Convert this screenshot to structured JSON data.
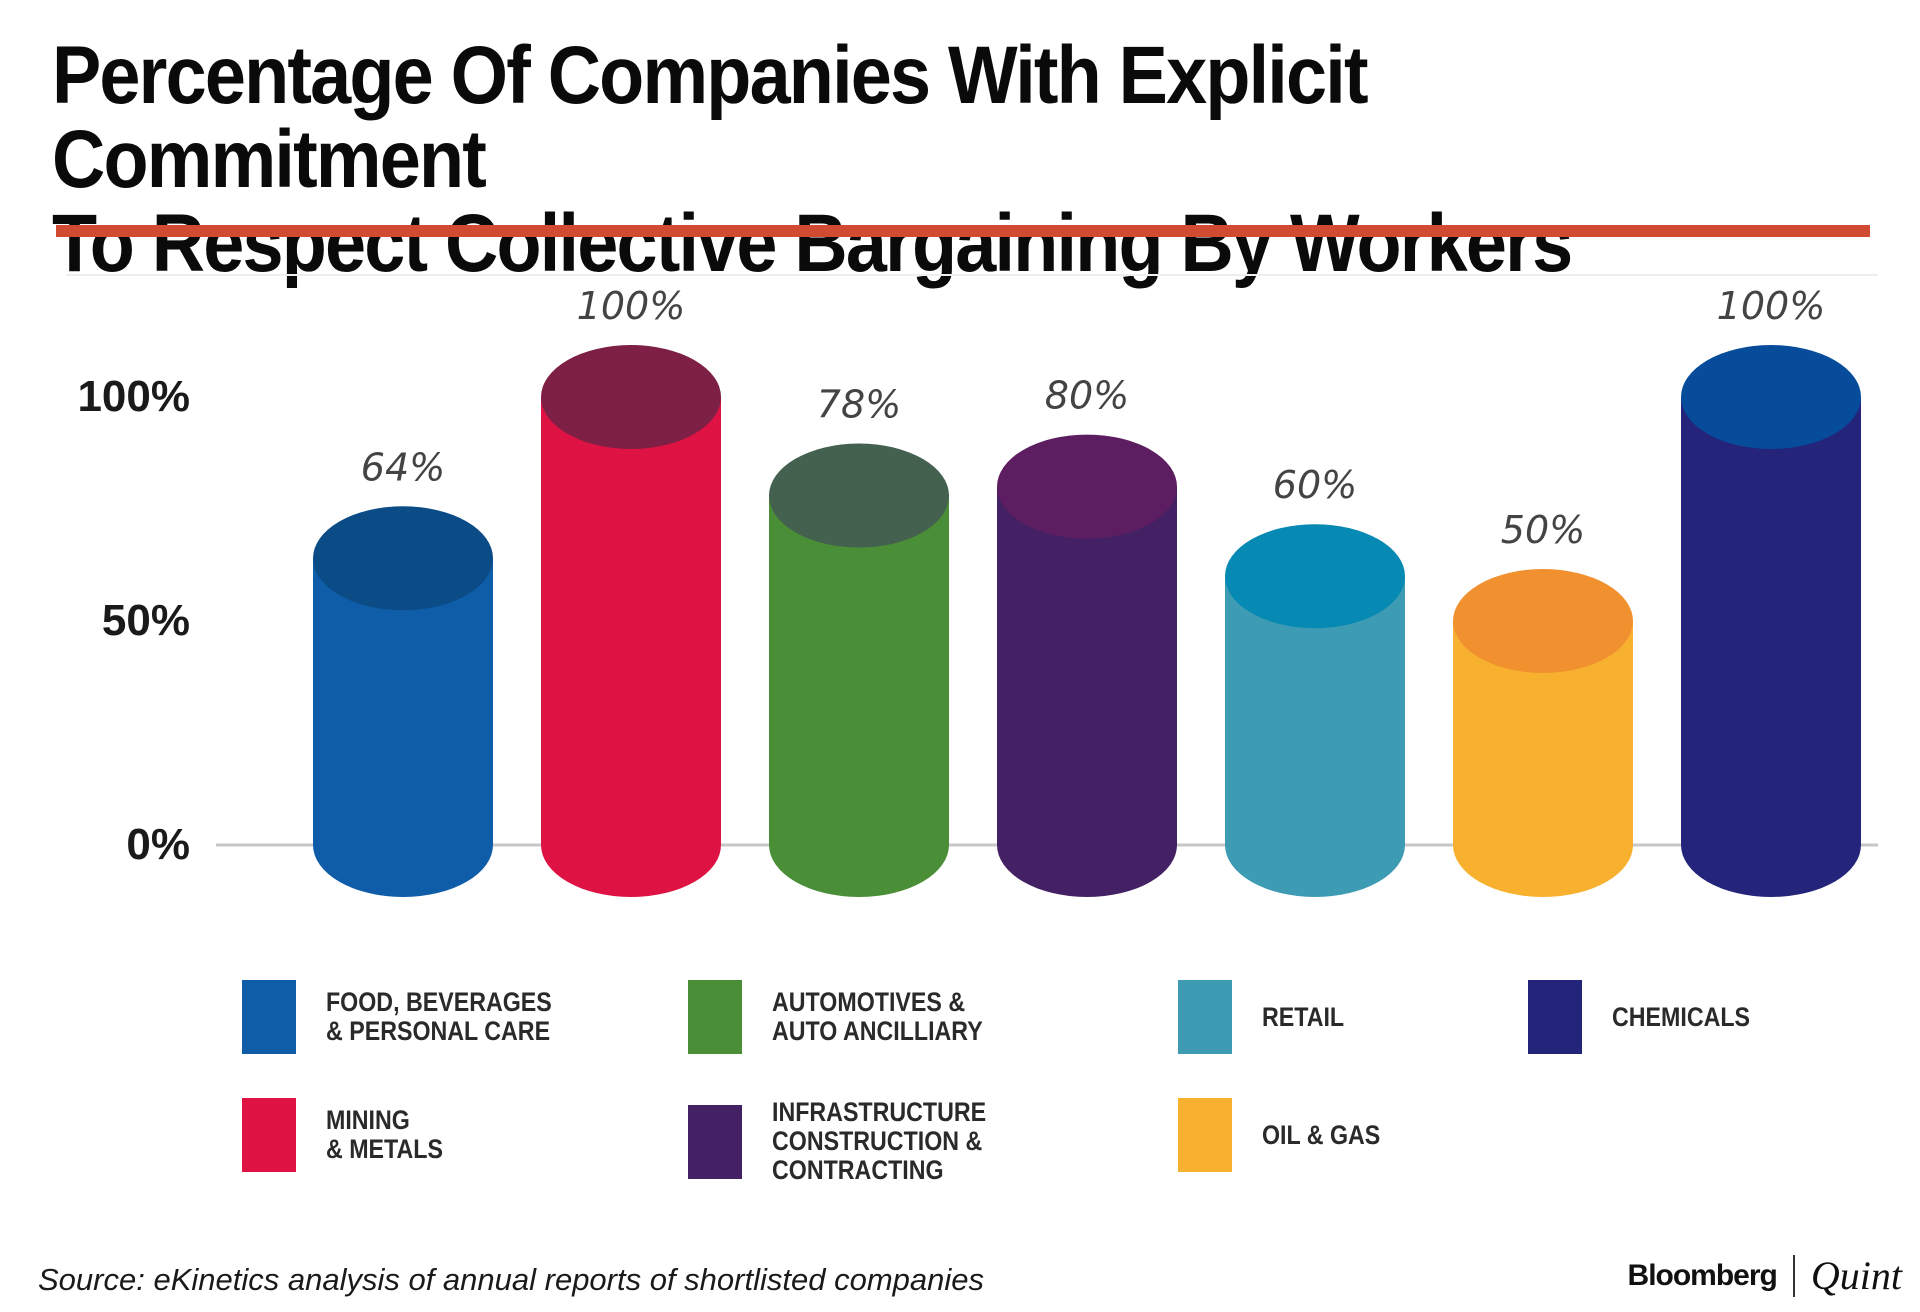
{
  "title_lines": [
    "Percentage Of Companies With Explicit Commitment",
    "To Respect Collective Bargaining By Workers"
  ],
  "chart_data": {
    "type": "bar",
    "style": "3d-cylinder",
    "title": "Percentage Of Companies With Explicit Commitment To Respect Collective Bargaining By Workers",
    "ylim": [
      0,
      100
    ],
    "yticks": [
      "0%",
      "50%",
      "100%"
    ],
    "ytick_values": [
      0,
      50,
      100
    ],
    "categories": [
      "FOOD, BEVERAGES & PERSONAL CARE",
      "MINING & METALS",
      "AUTOMOTIVES & AUTO ANCILLIARY",
      "INFRASTRUCTURE CONSTRUCTION & CONTRACTING",
      "RETAIL",
      "OIL & GAS",
      "CHEMICALS"
    ],
    "values": [
      64,
      100,
      78,
      80,
      60,
      50,
      100
    ],
    "value_labels": [
      "64%",
      "100%",
      "78%",
      "80%",
      "60%",
      "50%",
      "100%"
    ],
    "body_colors": [
      "#0f5ca8",
      "#de1343",
      "#4a8f37",
      "#442064",
      "#3e9bb4",
      "#f8b12f",
      "#23247a"
    ],
    "top_colors": [
      "#0b4b86",
      "#7e1f45",
      "#44604f",
      "#5d1d61",
      "#0689b2",
      "#f1902f",
      "#064c9b"
    ],
    "legend_position": "bottom"
  },
  "legend": {
    "items": [
      {
        "label": "FOOD, BEVERAGES\n& PERSONAL CARE",
        "color": "#0f5ca8"
      },
      {
        "label": "AUTOMOTIVES &\nAUTO ANCILLIARY",
        "color": "#4a8f37"
      },
      {
        "label": "RETAIL",
        "color": "#3e9bb4"
      },
      {
        "label": "CHEMICALS",
        "color": "#23247a"
      },
      {
        "label": "MINING\n& METALS",
        "color": "#de1343"
      },
      {
        "label": "INFRASTRUCTURE\nCONSTRUCTION &\nCONTRACTING",
        "color": "#442064"
      },
      {
        "label": "OIL & GAS",
        "color": "#f8b12f"
      }
    ]
  },
  "source": "Source: eKinetics analysis of annual reports of shortlisted companies",
  "brand": {
    "left": "Bloomberg",
    "right": "Quint"
  }
}
